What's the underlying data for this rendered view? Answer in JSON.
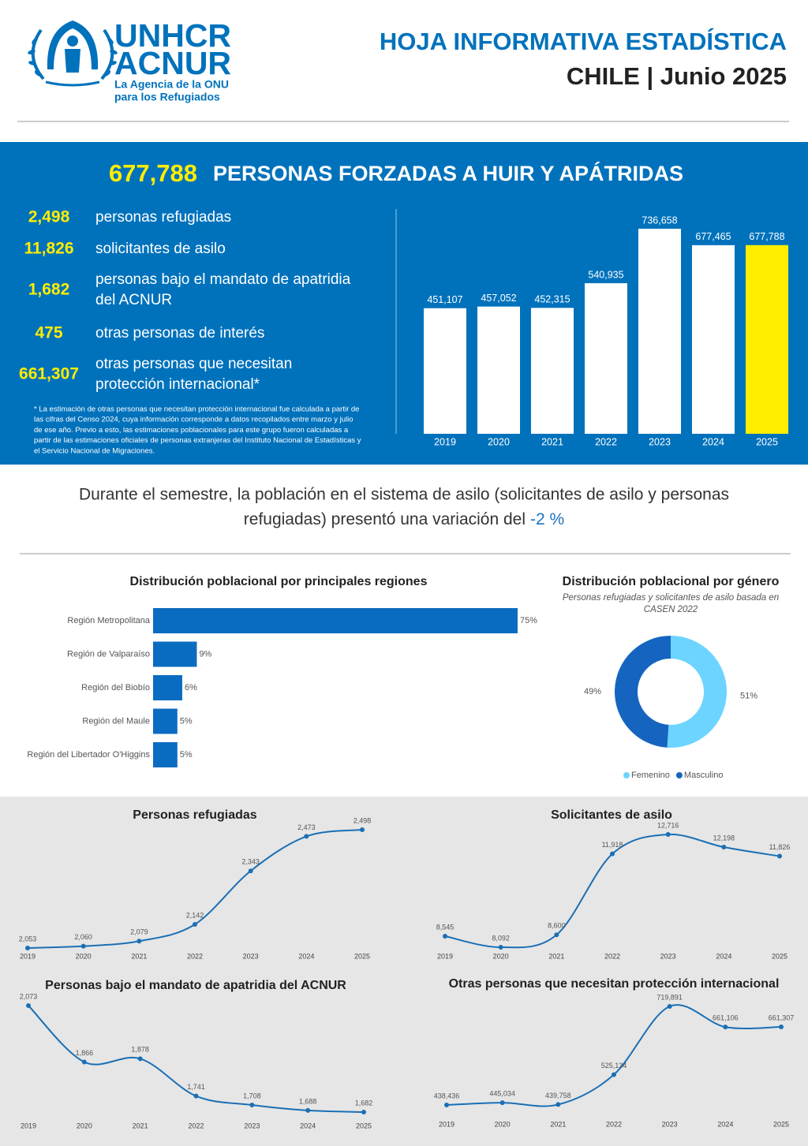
{
  "header": {
    "logo_line1": "UNHCR",
    "logo_line2": "ACNUR",
    "logo_sub1": "La Agencia de la ONU",
    "logo_sub2": "para los Refugiados",
    "title": "HOJA INFORMATIVA ESTADÍSTICA",
    "subtitle": "CHILE | Junio 2025"
  },
  "summary": {
    "total": "677,788",
    "title": "PERSONAS FORZADAS A HUIR Y APÁTRIDAS",
    "items": [
      {
        "number": "2,498",
        "text": [
          "personas refugiadas"
        ]
      },
      {
        "number": "11,826",
        "text": [
          "solicitantes de asilo"
        ]
      },
      {
        "number": "1,682",
        "text": [
          "personas bajo el mandato de apatridia",
          "del ACNUR"
        ]
      },
      {
        "number": "475",
        "text": [
          "otras personas de interés"
        ]
      },
      {
        "number": "661,307",
        "text": [
          "otras personas que necesitan",
          "protección internacional*"
        ]
      }
    ],
    "footnote": [
      "* La estimación de otras personas que necesitan protección internacional fue calculada a partir de",
      "las cifras del Censo 2024, cuya información corresponde a datos recopilados entre marzo y julio",
      "de ese año. Previo a esto, las estimaciones poblacionales para este grupo fueron calculadas a",
      "partir de las estimaciones oficiales de personas extranjeras del Instituto Nacional de Estadísticas y",
      "el Servicio Nacional de Migraciones."
    ]
  },
  "statement": {
    "lines": [
      "Durante el semestre, la población en el sistema de asilo (solicitantes de asilo y personas",
      "refugiadas) presentó una variación del"
    ],
    "highlight": "-2 %"
  },
  "chart_data": [
    {
      "type": "bar",
      "categories": [
        "2019",
        "2020",
        "2021",
        "2022",
        "2023",
        "2024",
        "2025"
      ],
      "values": [
        451107,
        457052,
        452315,
        540935,
        736658,
        677465,
        677788
      ],
      "value_labels": [
        "451,107",
        "457,052",
        "452,315",
        "540,935",
        "736,658",
        "677,465",
        "677,788"
      ],
      "colors": [
        "#ffffff",
        "#ffffff",
        "#ffffff",
        "#ffffff",
        "#ffffff",
        "#ffffff",
        "#ffed00"
      ]
    },
    {
      "type": "bar",
      "orientation": "horizontal",
      "title": "Distribución poblacional por principales regiones",
      "categories": [
        "Región Metropolitana",
        "Región de Valparaíso",
        "Región del Biobío",
        "Región del Maule",
        "Región del Libertador O'Higgins"
      ],
      "values": [
        75,
        9,
        6,
        5,
        5
      ],
      "value_labels": [
        "75%",
        "9%",
        "6%",
        "5%",
        "5%"
      ],
      "color": "#0a6cc0"
    },
    {
      "type": "pie",
      "donut": true,
      "title": "Distribución poblacional por género",
      "subtitle": [
        "Personas refugiadas y solicitantes de asilo basada en",
        "CASEN 2022"
      ],
      "categories": [
        "Femenino",
        "Masculino"
      ],
      "values": [
        51,
        49
      ],
      "value_labels": [
        "51%",
        "49%"
      ],
      "colors": [
        "#6cd4ff",
        "#1565c0"
      ]
    },
    {
      "type": "line",
      "title": "Personas refugiadas",
      "color": "#1a6fb5",
      "categories": [
        "2019",
        "2020",
        "2021",
        "2022",
        "2023",
        "2024",
        "2025"
      ],
      "values": [
        2053,
        2060,
        2079,
        2142,
        2343,
        2473,
        2498
      ],
      "value_labels": [
        "2,053",
        "2,060",
        "2,079",
        "2,142",
        "2,343",
        "2,473",
        "2,498"
      ]
    },
    {
      "type": "line",
      "title": "Solicitantes de asilo",
      "color": "#1a6fb5",
      "categories": [
        "2019",
        "2020",
        "2021",
        "2022",
        "2023",
        "2024",
        "2025"
      ],
      "values": [
        8545,
        8092,
        8600,
        11918,
        12716,
        12198,
        11826
      ],
      "value_labels": [
        "8,545",
        "8,092",
        "8,600",
        "11,918",
        "12,716",
        "12,198",
        "11,826"
      ]
    },
    {
      "type": "line",
      "title": "Personas bajo el mandato de apatridia del ACNUR",
      "color": "#1a6fb5",
      "categories": [
        "2019",
        "2020",
        "2021",
        "2022",
        "2023",
        "2024",
        "2025"
      ],
      "values": [
        2073,
        1866,
        1878,
        1741,
        1708,
        1688,
        1682
      ],
      "value_labels": [
        "2,073",
        "1,866",
        "1,878",
        "1,741",
        "1,708",
        "1,688",
        "1,682"
      ]
    },
    {
      "type": "line",
      "title": "Otras personas que necesitan protección internacional",
      "color": "#1a6fb5",
      "categories": [
        "2019",
        "2020",
        "2021",
        "2022",
        "2023",
        "2024",
        "2025"
      ],
      "values": [
        438436,
        445034,
        439758,
        525134,
        719891,
        661106,
        661307
      ],
      "value_labels": [
        "438,436",
        "445,034",
        "439,758",
        "525,134",
        "719,891",
        "661,106",
        "661,307"
      ]
    }
  ]
}
